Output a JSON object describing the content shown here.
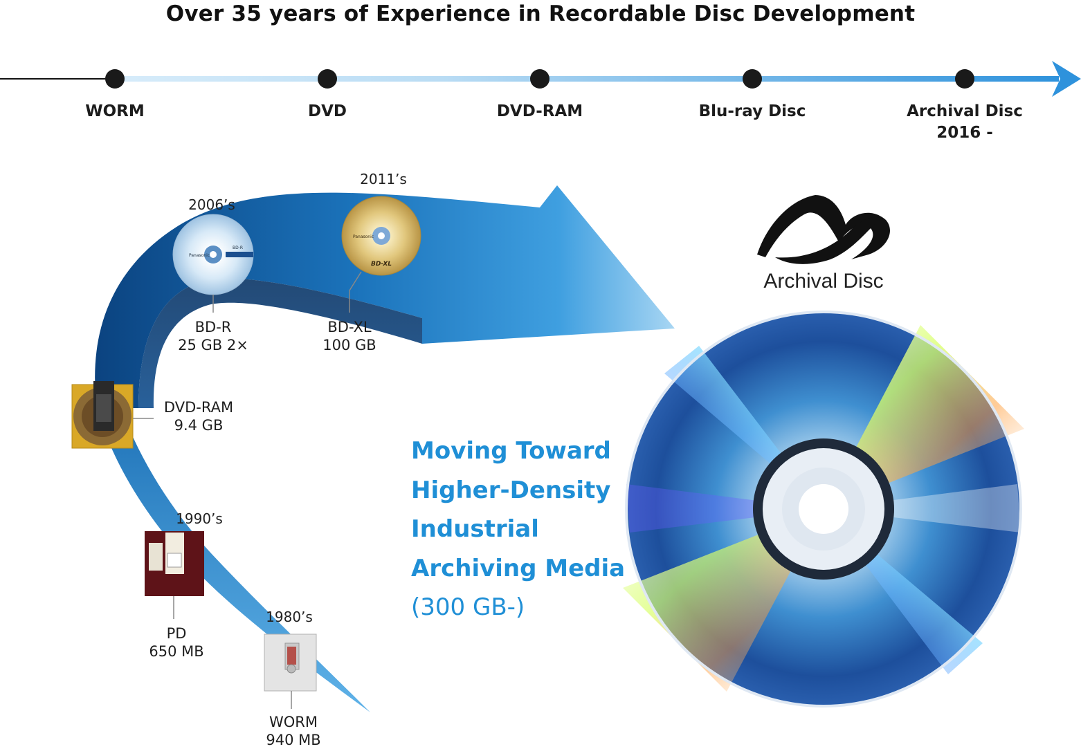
{
  "title": "Over 35 years of Experience in Recordable Disc Development",
  "timeline": {
    "stages": [
      {
        "label": "WORM",
        "sublabel": ""
      },
      {
        "label": "DVD",
        "sublabel": ""
      },
      {
        "label": "DVD-RAM",
        "sublabel": ""
      },
      {
        "label": "Blu-ray Disc",
        "sublabel": ""
      },
      {
        "label": "Archival Disc",
        "sublabel": "2016 -"
      }
    ]
  },
  "media": [
    {
      "name": "WORM",
      "capacity": "940 MB",
      "year": "1980’s"
    },
    {
      "name": "PD",
      "capacity": "650 MB",
      "year": "1990’s"
    },
    {
      "name": "DVD-RAM",
      "capacity": "9.4 GB",
      "year": ""
    },
    {
      "name": "BD-R",
      "capacity": "25 GB 2×",
      "year": "2006’s"
    },
    {
      "name": "BD-XL",
      "capacity": "100 GB",
      "year": "2011’s"
    }
  ],
  "headline": [
    "Moving Toward",
    "Higher-Density",
    "Industrial",
    "Archiving Media",
    "(300 GB-)"
  ],
  "archival_logo": {
    "text": "Archival Disc"
  },
  "disc_brand": {
    "bd_r_brand": "Panasonic",
    "bd_r_type": "BD-R",
    "bd_xl_brand": "Panasonic",
    "bd_xl_type": "BD-XL"
  },
  "colors": {
    "accent": "#1f8fd6",
    "arrow_dark": "#0d4f8c",
    "arrow_light": "#5fb4ea",
    "timeline_blue": "#3a9be0"
  }
}
